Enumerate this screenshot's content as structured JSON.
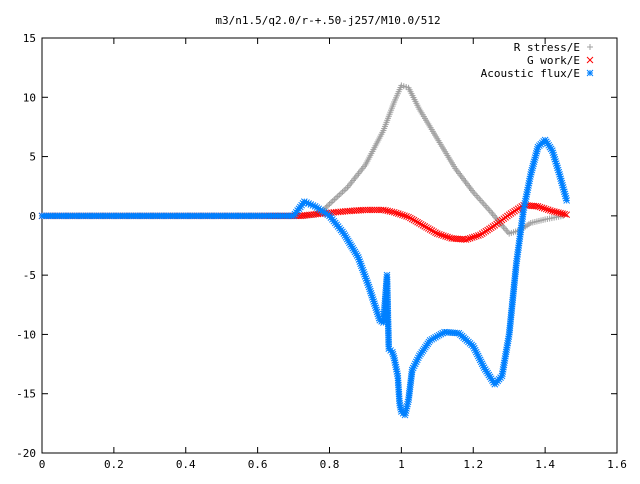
{
  "chart_data": {
    "type": "scatter",
    "title": "m3/n1.5/q2.0/r-+.50-j257/M10.0/512",
    "xlabel": "",
    "ylabel": "",
    "xlim": [
      0,
      1.6
    ],
    "ylim": [
      -20,
      15
    ],
    "x_ticks": [
      "0",
      "0.2",
      "0.4",
      "0.6",
      "0.8",
      "1",
      "1.2",
      "1.4",
      "1.6"
    ],
    "y_ticks": [
      "15",
      "10",
      "5",
      "0",
      "-5",
      "-10",
      "-15",
      "-20"
    ],
    "grid": false,
    "legend_position": "top-right",
    "series": [
      {
        "name": "R stress/E",
        "marker": "plus",
        "color": "#a0a0a0",
        "points": [
          [
            0,
            0
          ],
          [
            0.2,
            0
          ],
          [
            0.4,
            0
          ],
          [
            0.6,
            0
          ],
          [
            0.73,
            0
          ],
          [
            0.76,
            0.1
          ],
          [
            0.78,
            0.4
          ],
          [
            0.8,
            1.0
          ],
          [
            0.85,
            2.4
          ],
          [
            0.9,
            4.3
          ],
          [
            0.95,
            7.2
          ],
          [
            0.98,
            9.6
          ],
          [
            1.0,
            11.0
          ],
          [
            1.02,
            10.8
          ],
          [
            1.05,
            9.0
          ],
          [
            1.1,
            6.5
          ],
          [
            1.15,
            4.0
          ],
          [
            1.2,
            2.0
          ],
          [
            1.25,
            0.3
          ],
          [
            1.28,
            -0.8
          ],
          [
            1.3,
            -1.5
          ],
          [
            1.33,
            -1.2
          ],
          [
            1.36,
            -0.6
          ],
          [
            1.4,
            -0.3
          ],
          [
            1.45,
            0.0
          ]
        ]
      },
      {
        "name": "G work/E",
        "marker": "cross",
        "color": "#ff0000",
        "points": [
          [
            0,
            0
          ],
          [
            0.2,
            0
          ],
          [
            0.4,
            0
          ],
          [
            0.6,
            0
          ],
          [
            0.72,
            0
          ],
          [
            0.78,
            0.2
          ],
          [
            0.85,
            0.4
          ],
          [
            0.9,
            0.5
          ],
          [
            0.95,
            0.5
          ],
          [
            0.98,
            0.3
          ],
          [
            1.02,
            -0.1
          ],
          [
            1.06,
            -0.8
          ],
          [
            1.1,
            -1.5
          ],
          [
            1.14,
            -1.9
          ],
          [
            1.18,
            -2.0
          ],
          [
            1.22,
            -1.6
          ],
          [
            1.26,
            -0.8
          ],
          [
            1.3,
            0.1
          ],
          [
            1.34,
            0.9
          ],
          [
            1.38,
            0.8
          ],
          [
            1.42,
            0.4
          ],
          [
            1.46,
            0.1
          ]
        ]
      },
      {
        "name": "Acoustic flux/E",
        "marker": "star",
        "color": "#0080ff",
        "points": [
          [
            0,
            0
          ],
          [
            0.2,
            0
          ],
          [
            0.4,
            0
          ],
          [
            0.6,
            0
          ],
          [
            0.7,
            0
          ],
          [
            0.73,
            1.2
          ],
          [
            0.76,
            0.8
          ],
          [
            0.8,
            0
          ],
          [
            0.84,
            -1.5
          ],
          [
            0.88,
            -3.5
          ],
          [
            0.91,
            -6.0
          ],
          [
            0.94,
            -8.8
          ],
          [
            0.95,
            -9.0
          ],
          [
            0.96,
            -5.0
          ],
          [
            0.965,
            -11.2
          ],
          [
            0.975,
            -11.5
          ],
          [
            0.98,
            -12.0
          ],
          [
            0.99,
            -13.5
          ],
          [
            0.995,
            -15.8
          ],
          [
            1.0,
            -16.5
          ],
          [
            1.01,
            -16.8
          ],
          [
            1.02,
            -15.5
          ],
          [
            1.03,
            -13.0
          ],
          [
            1.05,
            -11.8
          ],
          [
            1.08,
            -10.5
          ],
          [
            1.12,
            -9.8
          ],
          [
            1.16,
            -9.9
          ],
          [
            1.2,
            -11.0
          ],
          [
            1.23,
            -12.8
          ],
          [
            1.26,
            -14.2
          ],
          [
            1.28,
            -13.5
          ],
          [
            1.3,
            -10.0
          ],
          [
            1.32,
            -4.0
          ],
          [
            1.34,
            0.5
          ],
          [
            1.36,
            3.5
          ],
          [
            1.38,
            5.8
          ],
          [
            1.4,
            6.4
          ],
          [
            1.42,
            5.5
          ],
          [
            1.44,
            3.5
          ],
          [
            1.46,
            1.3
          ]
        ]
      },
      {
        "name": "R stress/E",
        "marker": "plus",
        "color": "#a0a0a0",
        "points": []
      }
    ]
  }
}
